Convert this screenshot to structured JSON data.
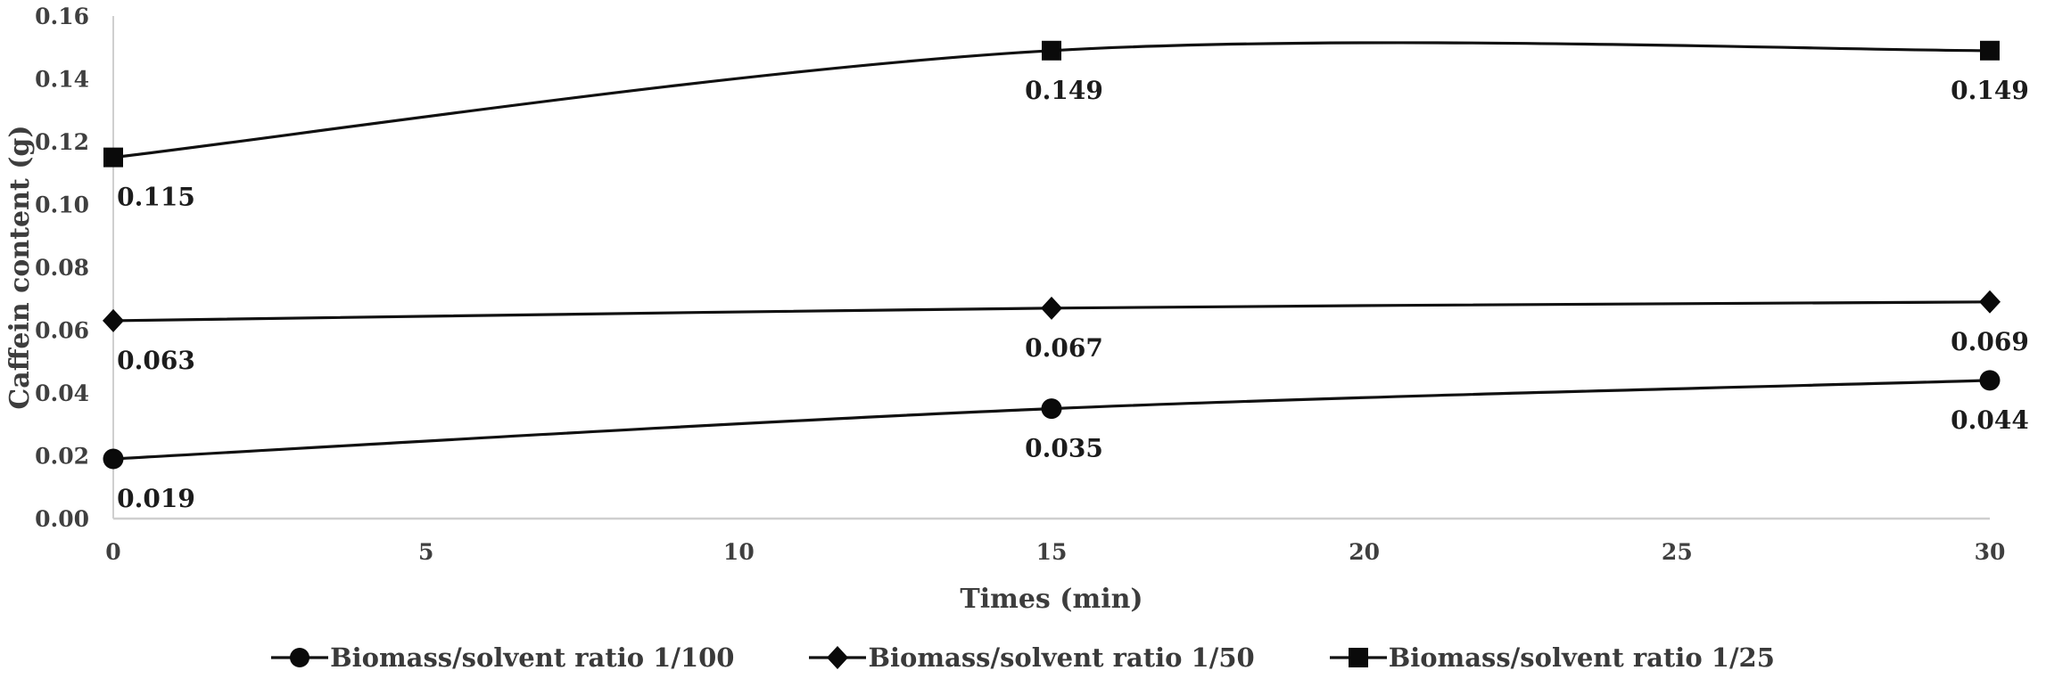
{
  "chart_data": {
    "type": "line",
    "title": "",
    "xlabel": "Times (min)",
    "ylabel": "Caffein content (g)",
    "xlim": [
      0,
      30
    ],
    "ylim": [
      0,
      0.16
    ],
    "xticks": [
      "0",
      "5",
      "10",
      "15",
      "20",
      "25",
      "30"
    ],
    "xtick_values": [
      0,
      5,
      10,
      15,
      20,
      25,
      30
    ],
    "yticks": [
      "0.00",
      "0.02",
      "0.04",
      "0.06",
      "0.08",
      "0.10",
      "0.12",
      "0.14",
      "0.16"
    ],
    "ytick_values": [
      0,
      0.02,
      0.04,
      0.06,
      0.08,
      0.1,
      0.12,
      0.14,
      0.16
    ],
    "x": [
      0,
      15,
      30
    ],
    "grid": false,
    "line_style": "smooth",
    "legend_position": "bottom-center",
    "series": [
      {
        "name": "Biomass/solvent ratio 1/100",
        "marker": "circle",
        "values": [
          0.019,
          0.035,
          0.044
        ],
        "labels": [
          "0.019",
          "0.035",
          "0.044"
        ]
      },
      {
        "name": "Biomass/solvent ratio 1/50",
        "marker": "diamond",
        "values": [
          0.063,
          0.067,
          0.069
        ],
        "labels": [
          "0.063",
          "0.067",
          "0.069"
        ]
      },
      {
        "name": "Biomass/solvent ratio 1/25",
        "marker": "square",
        "values": [
          0.115,
          0.149,
          0.149
        ],
        "labels": [
          "0.115",
          "0.149",
          "0.149"
        ]
      }
    ],
    "colors": {
      "series_line": "#111111",
      "marker_fill": "#0a0a0a",
      "axis_line": "#cfcfcf",
      "tick_text": "#3f3f3f",
      "data_label_text": "#1c1c1c",
      "background": "#ffffff"
    }
  }
}
